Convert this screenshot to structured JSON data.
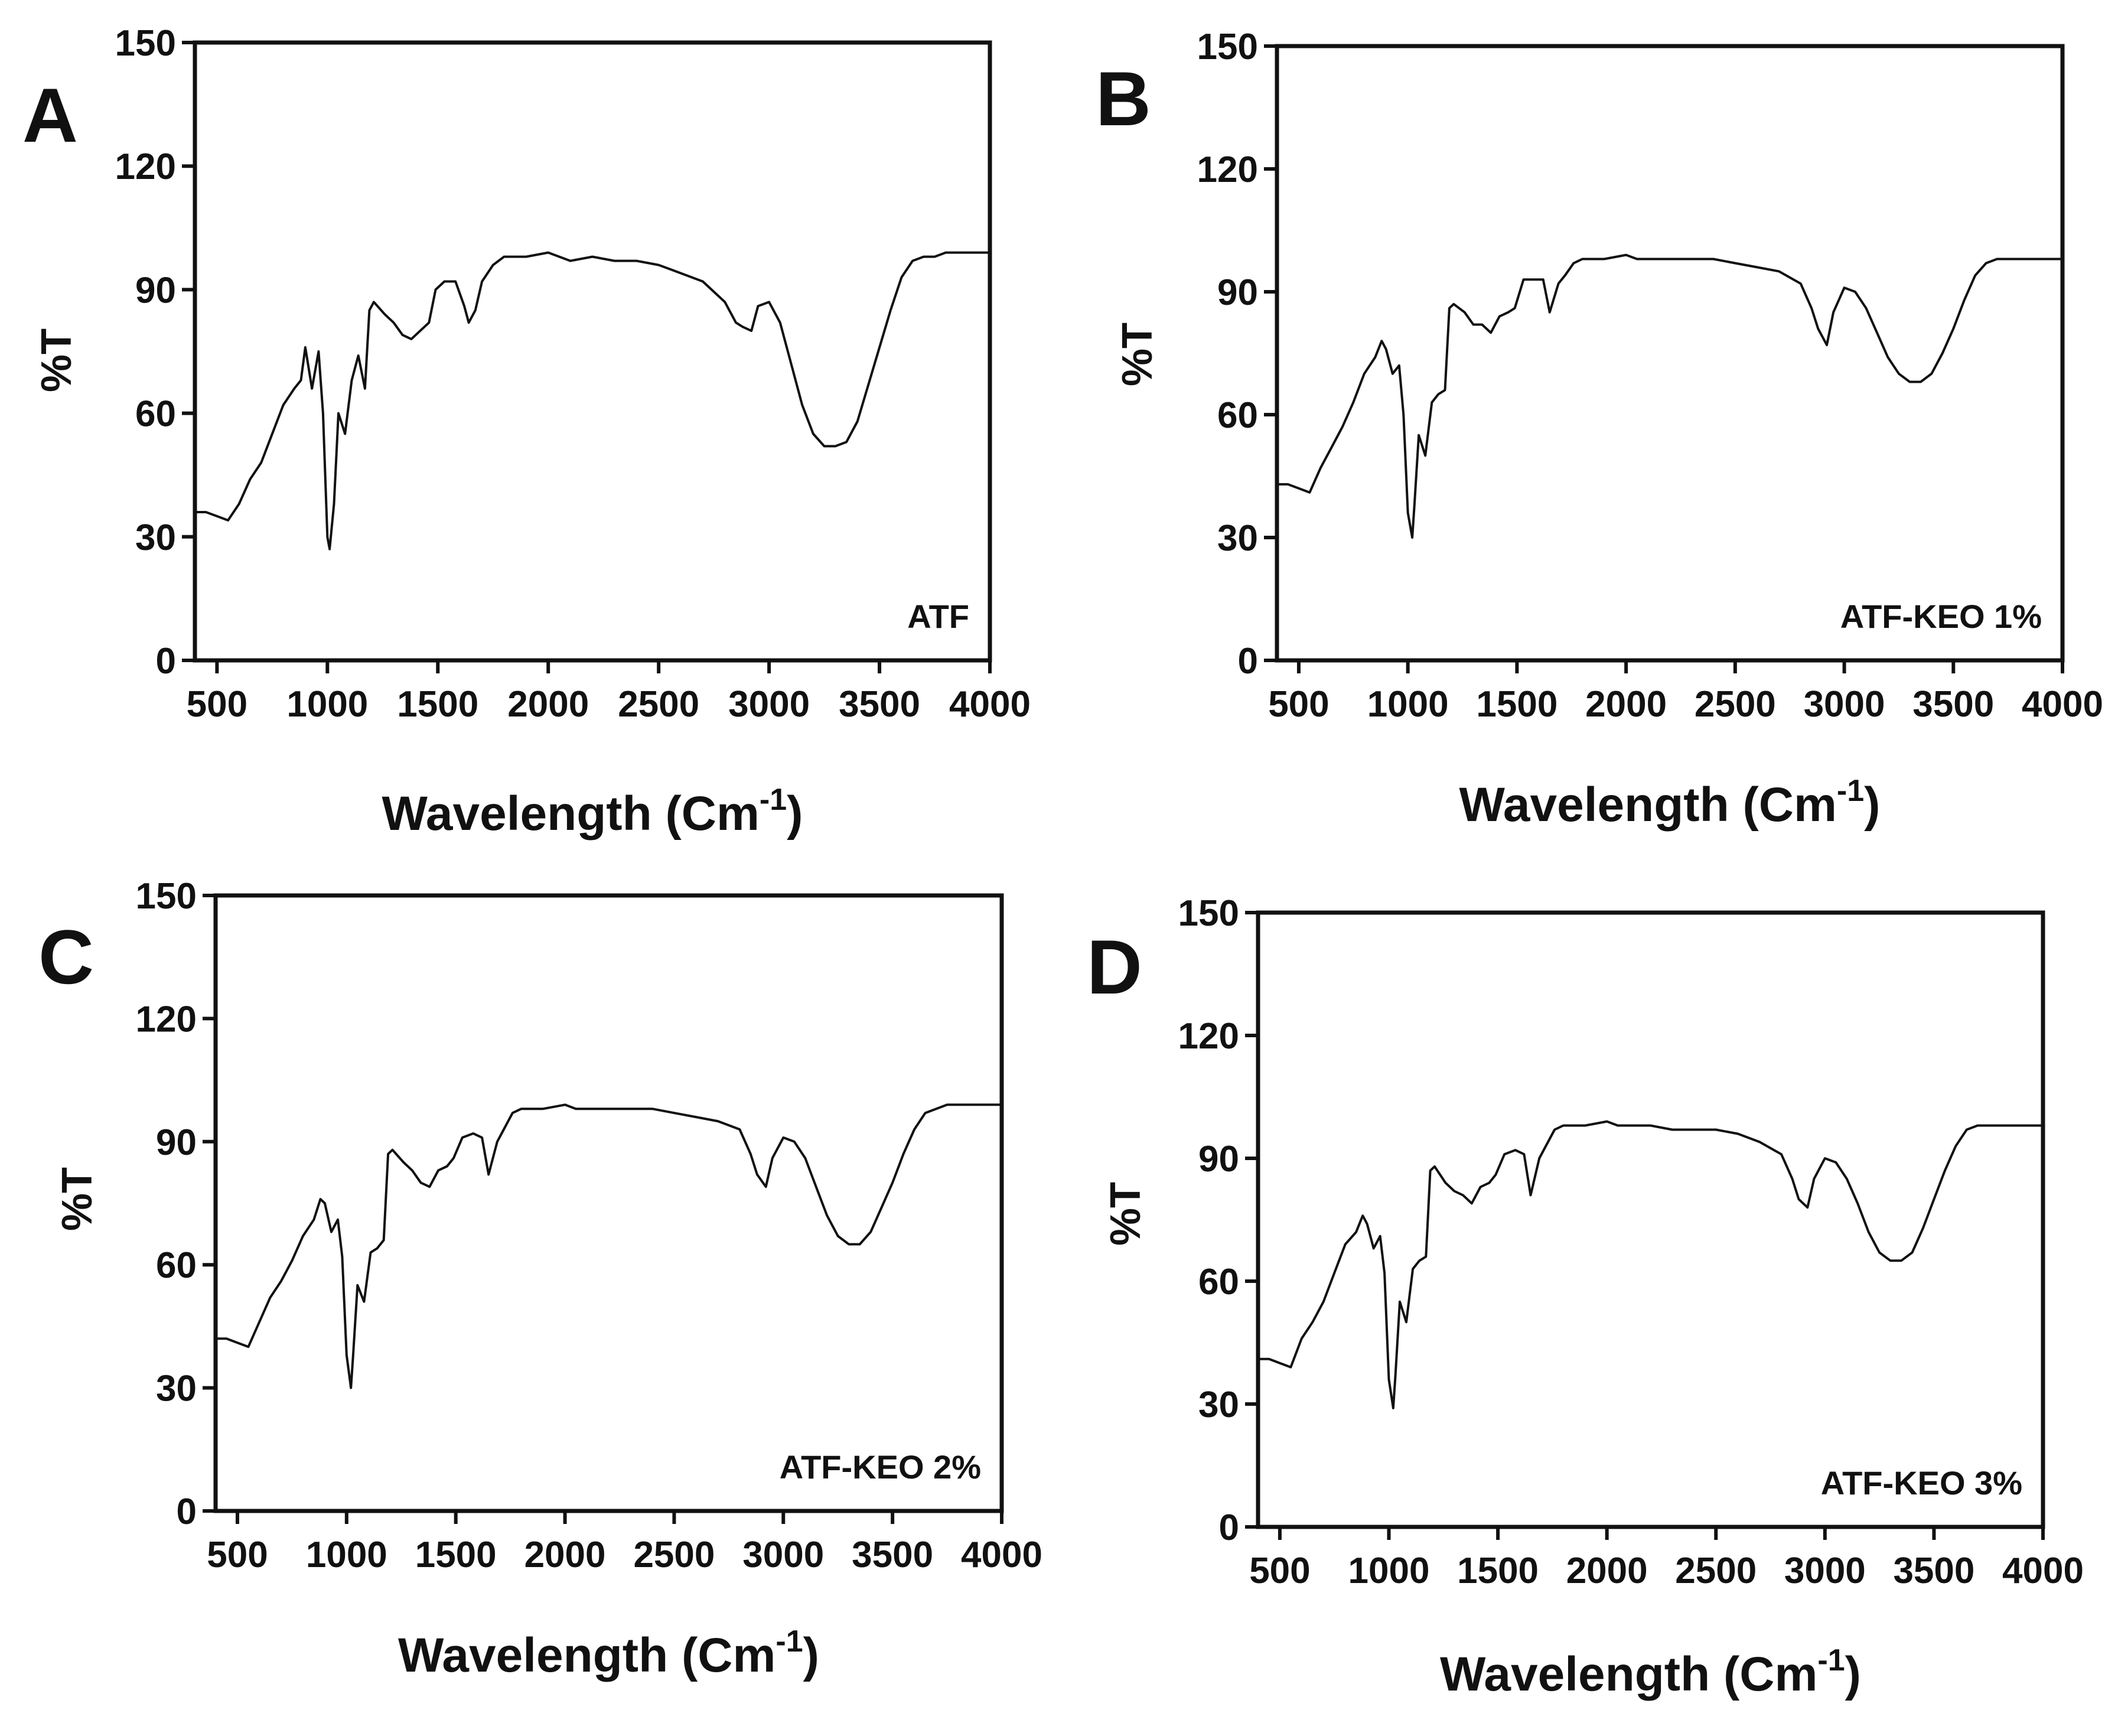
{
  "chart_data": [
    {
      "type": "line",
      "panel": "A",
      "sample_label": "ATF",
      "xlabel": "Wavelength (Cm",
      "xlabel_sup": "-1",
      "xlabel_close": ")",
      "ylabel": "%T",
      "xlim": [
        400,
        4000
      ],
      "ylim": [
        0,
        150
      ],
      "xticks": [
        500,
        1000,
        1500,
        2000,
        2500,
        3000,
        3500,
        4000
      ],
      "yticks": [
        0,
        30,
        60,
        90,
        120,
        150
      ],
      "grid": false,
      "series": [
        {
          "name": "ATF",
          "x": [
            400,
            450,
            500,
            550,
            600,
            650,
            700,
            750,
            800,
            850,
            880,
            900,
            930,
            960,
            980,
            1000,
            1010,
            1030,
            1050,
            1080,
            1110,
            1140,
            1170,
            1190,
            1210,
            1260,
            1300,
            1340,
            1380,
            1420,
            1460,
            1490,
            1530,
            1580,
            1620,
            1640,
            1670,
            1700,
            1750,
            1800,
            1900,
            2000,
            2050,
            2100,
            2200,
            2300,
            2400,
            2500,
            2600,
            2700,
            2800,
            2850,
            2880,
            2920,
            2950,
            3000,
            3050,
            3100,
            3150,
            3200,
            3250,
            3300,
            3350,
            3400,
            3450,
            3500,
            3550,
            3600,
            3650,
            3700,
            3750,
            3800,
            3900,
            4000
          ],
          "y": [
            36,
            36,
            35,
            34,
            38,
            44,
            48,
            55,
            62,
            66,
            68,
            76,
            66,
            75,
            60,
            30,
            27,
            38,
            60,
            55,
            68,
            74,
            66,
            85,
            87,
            84,
            82,
            79,
            78,
            80,
            82,
            90,
            92,
            92,
            86,
            82,
            85,
            92,
            96,
            98,
            98,
            99,
            98,
            97,
            98,
            97,
            97,
            96,
            94,
            92,
            87,
            82,
            81,
            80,
            86,
            87,
            82,
            72,
            62,
            55,
            52,
            52,
            53,
            58,
            67,
            76,
            85,
            93,
            97,
            98,
            98,
            99,
            99,
            99
          ]
        }
      ]
    },
    {
      "type": "line",
      "panel": "B",
      "sample_label": "ATF-KEO 1%",
      "xlabel": "Wavelength (Cm",
      "xlabel_sup": "-1",
      "xlabel_close": ")",
      "ylabel": "%T",
      "xlim": [
        400,
        4000
      ],
      "ylim": [
        0,
        150
      ],
      "xticks": [
        500,
        1000,
        1500,
        2000,
        2500,
        3000,
        3500,
        4000
      ],
      "yticks": [
        0,
        30,
        60,
        90,
        120,
        150
      ],
      "grid": false,
      "series": [
        {
          "name": "ATF-KEO 1%",
          "x": [
            400,
            450,
            500,
            550,
            600,
            650,
            700,
            750,
            800,
            850,
            880,
            900,
            930,
            960,
            980,
            1000,
            1020,
            1030,
            1050,
            1080,
            1110,
            1140,
            1170,
            1190,
            1210,
            1260,
            1300,
            1340,
            1380,
            1420,
            1460,
            1490,
            1530,
            1580,
            1620,
            1650,
            1690,
            1720,
            1760,
            1800,
            1900,
            2000,
            2050,
            2100,
            2200,
            2300,
            2400,
            2500,
            2600,
            2700,
            2800,
            2850,
            2880,
            2920,
            2950,
            3000,
            3050,
            3100,
            3150,
            3200,
            3250,
            3300,
            3350,
            3400,
            3450,
            3500,
            3550,
            3600,
            3650,
            3700,
            3750,
            3800,
            3900,
            4000
          ],
          "y": [
            43,
            43,
            42,
            41,
            47,
            52,
            57,
            63,
            70,
            74,
            78,
            76,
            70,
            72,
            60,
            36,
            30,
            38,
            55,
            50,
            63,
            65,
            66,
            86,
            87,
            85,
            82,
            82,
            80,
            84,
            85,
            86,
            93,
            93,
            93,
            85,
            92,
            94,
            97,
            98,
            98,
            99,
            98,
            98,
            98,
            98,
            98,
            97,
            96,
            95,
            92,
            86,
            81,
            77,
            85,
            91,
            90,
            86,
            80,
            74,
            70,
            68,
            68,
            70,
            75,
            81,
            88,
            94,
            97,
            98,
            98,
            98,
            98,
            98
          ]
        }
      ]
    },
    {
      "type": "line",
      "panel": "C",
      "sample_label": "ATF-KEO 2%",
      "xlabel": "Wavelength (Cm",
      "xlabel_sup": "-1",
      "xlabel_close": ")",
      "ylabel": "%T",
      "xlim": [
        400,
        4000
      ],
      "ylim": [
        0,
        150
      ],
      "xticks": [
        500,
        1000,
        1500,
        2000,
        2500,
        3000,
        3500,
        4000
      ],
      "yticks": [
        0,
        30,
        60,
        90,
        120,
        150
      ],
      "grid": false,
      "series": [
        {
          "name": "ATF-KEO 2%",
          "x": [
            400,
            450,
            500,
            550,
            600,
            650,
            700,
            750,
            800,
            850,
            880,
            900,
            930,
            960,
            980,
            1000,
            1020,
            1030,
            1050,
            1080,
            1110,
            1140,
            1170,
            1190,
            1210,
            1260,
            1300,
            1340,
            1380,
            1420,
            1460,
            1490,
            1530,
            1580,
            1620,
            1650,
            1690,
            1720,
            1760,
            1800,
            1900,
            2000,
            2050,
            2100,
            2200,
            2300,
            2400,
            2500,
            2600,
            2700,
            2800,
            2850,
            2880,
            2920,
            2950,
            3000,
            3050,
            3100,
            3150,
            3200,
            3250,
            3300,
            3350,
            3400,
            3450,
            3500,
            3550,
            3600,
            3650,
            3700,
            3750,
            3800,
            3900,
            4000
          ],
          "y": [
            42,
            42,
            41,
            40,
            46,
            52,
            56,
            61,
            67,
            71,
            76,
            75,
            68,
            71,
            62,
            38,
            30,
            38,
            55,
            51,
            63,
            64,
            66,
            87,
            88,
            85,
            83,
            80,
            79,
            83,
            84,
            86,
            91,
            92,
            91,
            82,
            90,
            93,
            97,
            98,
            98,
            99,
            98,
            98,
            98,
            98,
            98,
            97,
            96,
            95,
            93,
            87,
            82,
            79,
            86,
            91,
            90,
            86,
            79,
            72,
            67,
            65,
            65,
            68,
            74,
            80,
            87,
            93,
            97,
            98,
            99,
            99,
            99,
            99
          ]
        }
      ]
    },
    {
      "type": "line",
      "panel": "D",
      "sample_label": "ATF-KEO 3%",
      "xlabel": "Wavelength (Cm",
      "xlabel_sup": "-1",
      "xlabel_close": ")",
      "ylabel": "%T",
      "xlim": [
        400,
        4000
      ],
      "ylim": [
        0,
        150
      ],
      "xticks": [
        500,
        1000,
        1500,
        2000,
        2500,
        3000,
        3500,
        4000
      ],
      "yticks": [
        0,
        30,
        60,
        90,
        120,
        150
      ],
      "grid": false,
      "series": [
        {
          "name": "ATF-KEO 3%",
          "x": [
            400,
            450,
            500,
            550,
            600,
            650,
            700,
            750,
            800,
            850,
            880,
            900,
            930,
            960,
            980,
            1000,
            1020,
            1030,
            1050,
            1080,
            1110,
            1140,
            1170,
            1190,
            1210,
            1260,
            1300,
            1340,
            1380,
            1420,
            1460,
            1490,
            1530,
            1580,
            1620,
            1650,
            1690,
            1720,
            1760,
            1800,
            1900,
            2000,
            2050,
            2100,
            2200,
            2300,
            2400,
            2500,
            2600,
            2700,
            2800,
            2850,
            2880,
            2920,
            2950,
            3000,
            3050,
            3100,
            3150,
            3200,
            3250,
            3300,
            3350,
            3400,
            3450,
            3500,
            3550,
            3600,
            3650,
            3700,
            3750,
            3800,
            3900,
            4000
          ],
          "y": [
            41,
            41,
            40,
            39,
            46,
            50,
            55,
            62,
            69,
            72,
            76,
            74,
            68,
            71,
            62,
            36,
            29,
            37,
            55,
            50,
            63,
            65,
            66,
            87,
            88,
            84,
            82,
            81,
            79,
            83,
            84,
            86,
            91,
            92,
            91,
            81,
            90,
            93,
            97,
            98,
            98,
            99,
            98,
            98,
            98,
            97,
            97,
            97,
            96,
            94,
            91,
            85,
            80,
            78,
            85,
            90,
            89,
            85,
            79,
            72,
            67,
            65,
            65,
            67,
            73,
            80,
            87,
            93,
            97,
            98,
            98,
            98,
            98,
            98
          ]
        }
      ]
    }
  ]
}
